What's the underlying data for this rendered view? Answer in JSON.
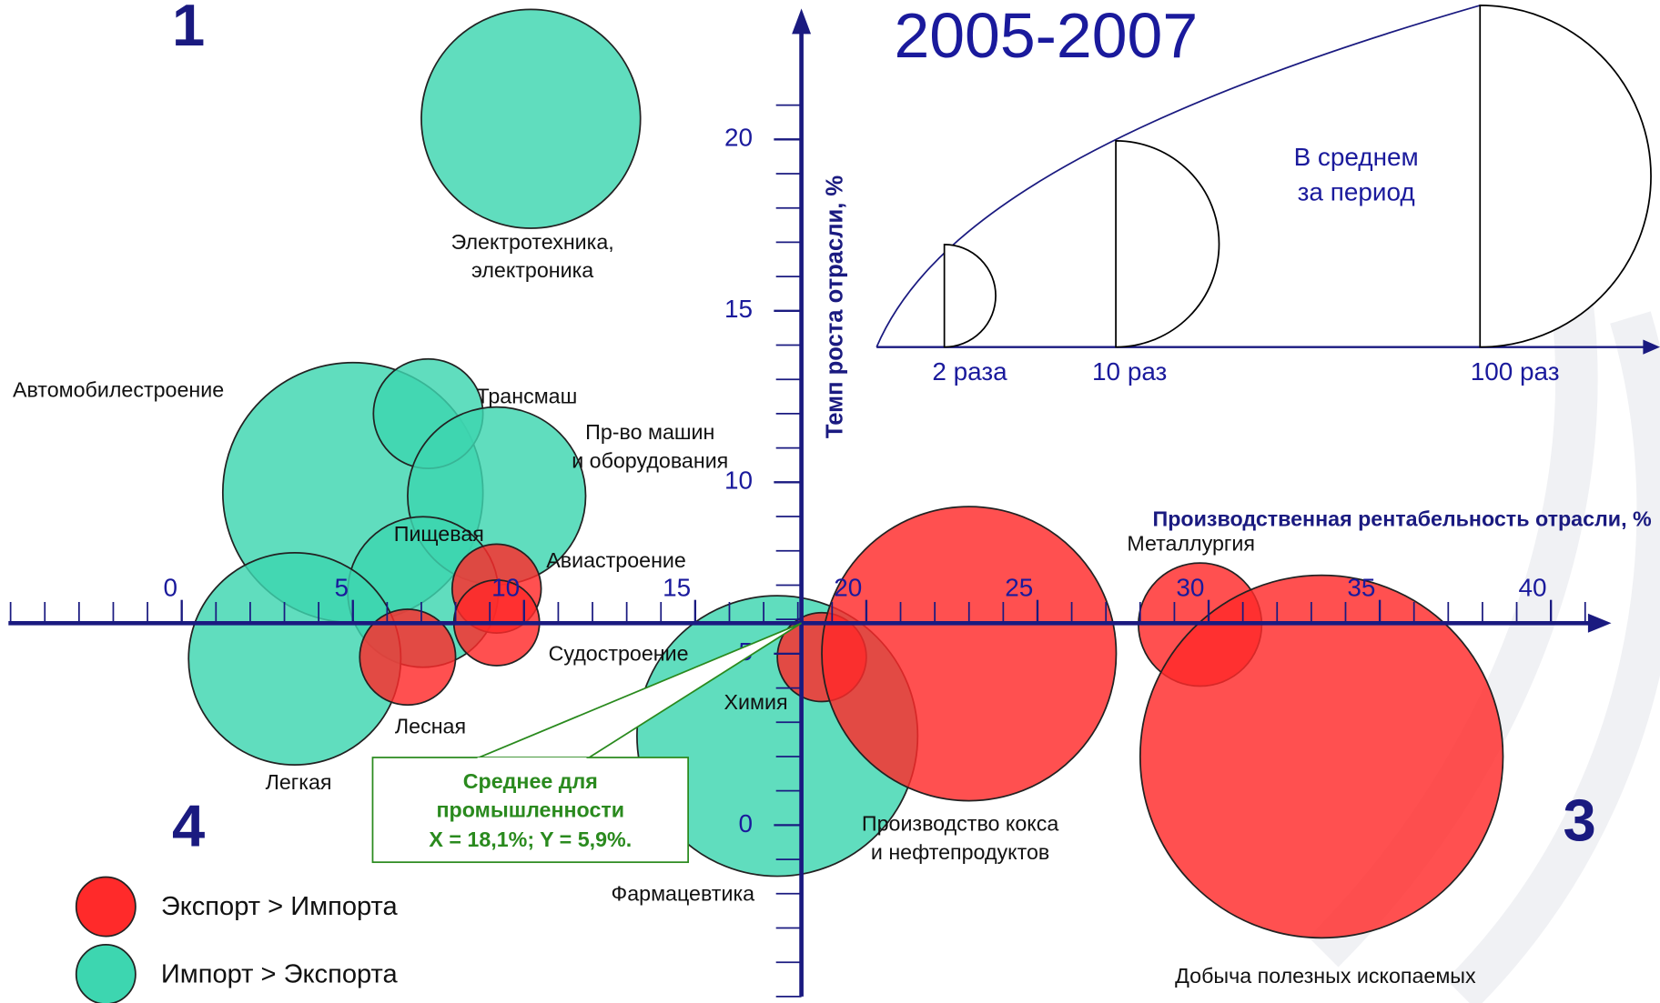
{
  "chart_data": {
    "type": "bubble",
    "title": "2005-2007",
    "x_label": "Производственная рентабельность отрасли, %",
    "y_label": "Темп роста отрасли, %",
    "xlim": [
      -5,
      41.3
    ],
    "ylim": [
      -5,
      23.6
    ],
    "xticks": [
      0,
      5,
      10,
      15,
      20,
      25,
      30,
      35,
      40
    ],
    "yticks": [
      0,
      5,
      10,
      15,
      20
    ],
    "minor_tick_step": 1,
    "quadrants": [
      "1",
      "4",
      "3"
    ],
    "series": [
      {
        "name": "Импорт > Экспорта",
        "color": "#3dd6b0",
        "labels": [
          [
            "Электротехника,",
            "электроника"
          ],
          [
            "Автомобилестроение"
          ],
          [
            "Трансмаш"
          ],
          [
            "Пр-во машин",
            "и оборудования"
          ],
          [
            "Пищевая"
          ],
          [
            "Легкая"
          ],
          [
            "Фармацевтика"
          ]
        ],
        "x": [
          10.2,
          5.0,
          7.2,
          9.2,
          7.05,
          3.3,
          17.4
        ],
        "values": [
          20.6,
          9.7,
          12.0,
          9.6,
          6.8,
          4.85,
          2.6
        ],
        "sizes": [
          3.2,
          3.8,
          1.6,
          2.6,
          2.2,
          3.1,
          4.1
        ]
      },
      {
        "name": "Экспорт > Импорта",
        "color": "#ff2a2a",
        "labels": [
          [
            "Авиастроение"
          ],
          [
            "Судостроение"
          ],
          [
            "Лесная"
          ],
          [
            "Химия"
          ],
          [
            "Производство кокса",
            "и нефтепродуктов"
          ],
          [
            "Металлургия"
          ],
          [
            "Добыча полезных ископаемых"
          ]
        ],
        "x": [
          9.2,
          9.2,
          6.6,
          18.7,
          23.0,
          29.75,
          33.3
        ],
        "values": [
          6.9,
          5.9,
          4.9,
          4.9,
          5.0,
          5.85,
          2.0
        ],
        "sizes": [
          1.3,
          1.25,
          1.4,
          1.3,
          4.3,
          1.8,
          5.3
        ]
      }
    ],
    "annotation": [
      "Среднее для",
      "промышленности",
      "X = 18,1%; Y = 5,9%."
    ],
    "size_legend": {
      "title": [
        "В среднем",
        "за период"
      ],
      "labels": [
        "2 раза",
        "10 раз",
        "100 раз"
      ]
    }
  }
}
